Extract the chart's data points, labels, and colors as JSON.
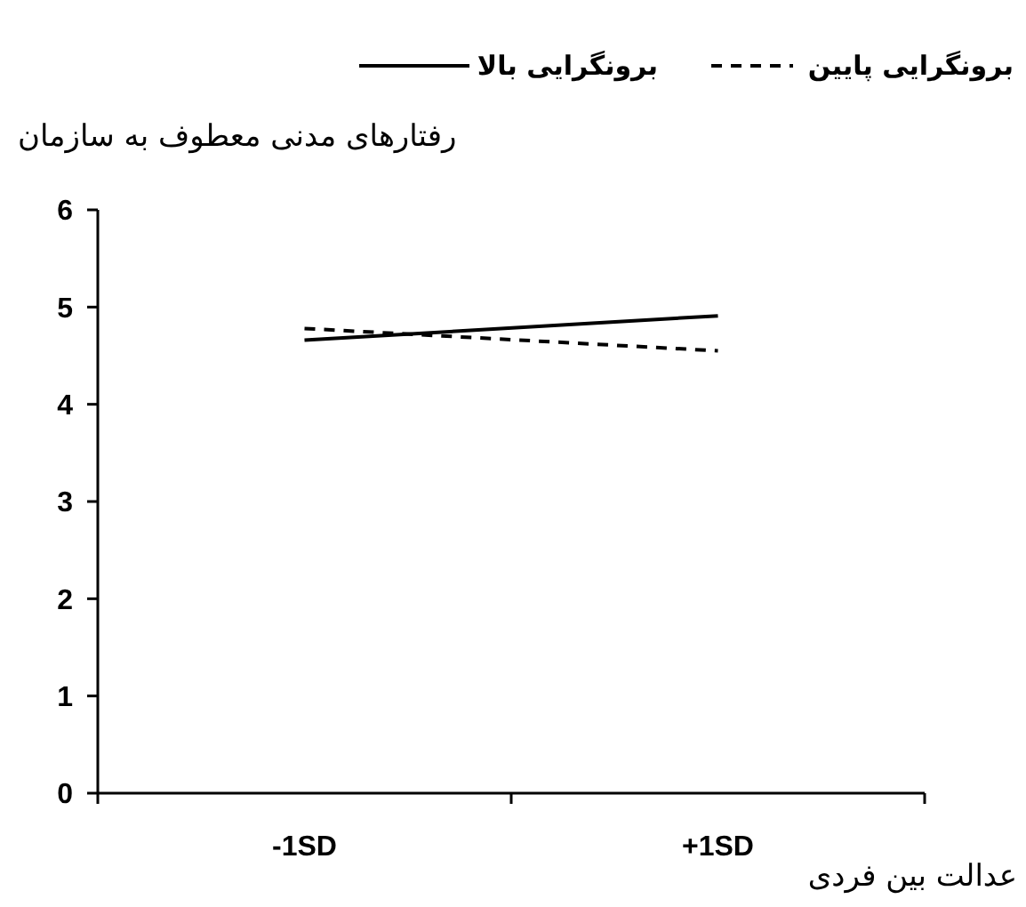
{
  "chart_data": {
    "type": "line",
    "ylabel": "رفتارهای مدنی معطوف به سازمان",
    "xlabel": "عدالت بین فردی",
    "categories": [
      "-1SD",
      "+1SD"
    ],
    "ylim": [
      0,
      6
    ],
    "yticks": [
      0,
      1,
      2,
      3,
      4,
      5,
      6
    ],
    "legend": "top",
    "grid": false,
    "marker": "none",
    "series": [
      {
        "name": "برونگرایی بالا",
        "color": "#000000",
        "line_style": "solid",
        "values": [
          4.66,
          4.91
        ]
      },
      {
        "name": "برونگرایی پایین",
        "color": "#000000",
        "line_style": "dashed",
        "values": [
          4.78,
          4.55
        ]
      }
    ]
  }
}
